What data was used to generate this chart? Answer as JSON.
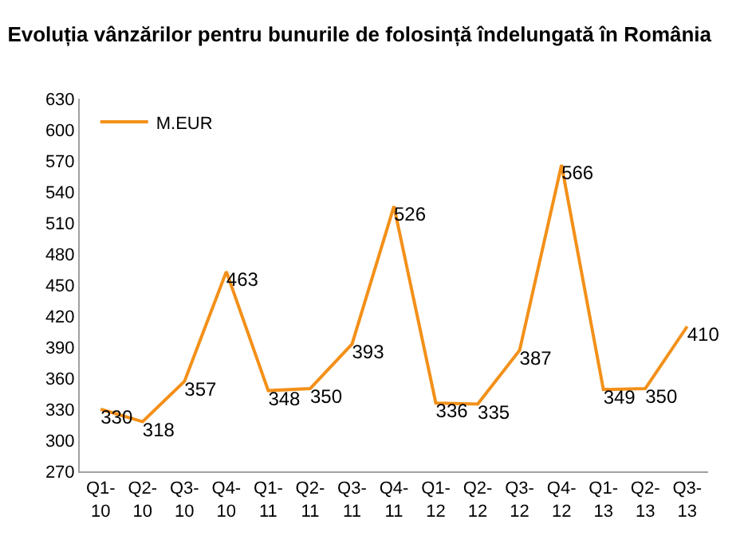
{
  "chart_data": {
    "type": "line",
    "title": "Evoluția vânzărilor pentru bunurile de folosință îndelungată în România",
    "categories": [
      "Q1-10",
      "Q2-10",
      "Q3-10",
      "Q4-10",
      "Q1-11",
      "Q2-11",
      "Q3-11",
      "Q4-11",
      "Q1-12",
      "Q2-12",
      "Q3-12",
      "Q4-12",
      "Q1-13",
      "Q2-13",
      "Q3-13"
    ],
    "series": [
      {
        "name": "M.EUR",
        "color": "#f39019",
        "values": [
          330,
          318,
          357,
          463,
          348,
          350,
          393,
          526,
          336,
          335,
          387,
          566,
          349,
          350,
          410
        ]
      }
    ],
    "ylim": [
      270,
      630
    ],
    "yticks": [
      270,
      300,
      330,
      360,
      390,
      420,
      450,
      480,
      510,
      540,
      570,
      600,
      630
    ],
    "data_labels": true,
    "legend": "top left",
    "marker": "none",
    "line_style": "solid"
  }
}
